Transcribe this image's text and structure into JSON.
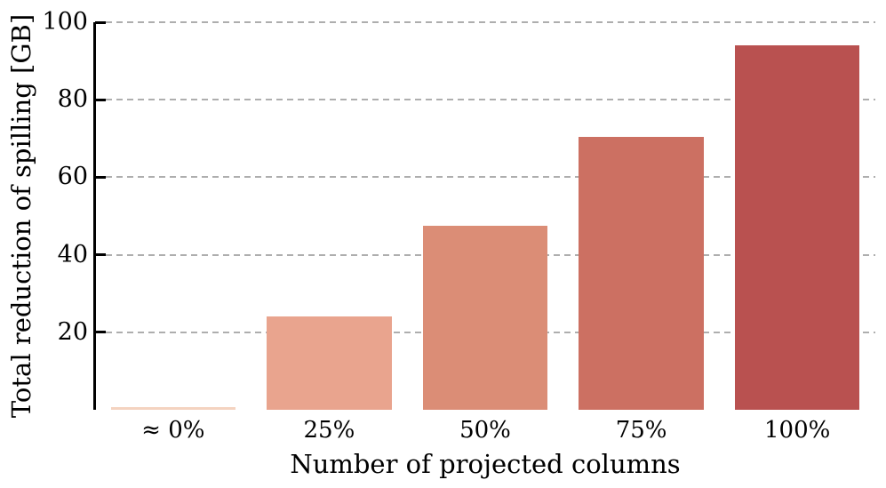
{
  "chart_data": {
    "type": "bar",
    "title": "",
    "xlabel": "Number of projected columns",
    "ylabel": "Total reduction of spilling [GB]",
    "categories": [
      "≈ 0%",
      "25%",
      "50%",
      "75%",
      "100%"
    ],
    "values": [
      0.6,
      24,
      47.5,
      70.5,
      94
    ],
    "bar_colors": [
      "#f4d3c0",
      "#e9a48e",
      "#db8d76",
      "#cc7062",
      "#b95150"
    ],
    "ylim": [
      0,
      100
    ],
    "yticks": [
      20,
      40,
      60,
      80,
      100
    ],
    "grid": "horizontal dashed gridlines at y-ticks, drawn behind bars",
    "legend": "none",
    "gridline_color": "#aeaeae",
    "axis_color": "#000000",
    "text_color": "#000000",
    "background_color": "#ffffff"
  }
}
